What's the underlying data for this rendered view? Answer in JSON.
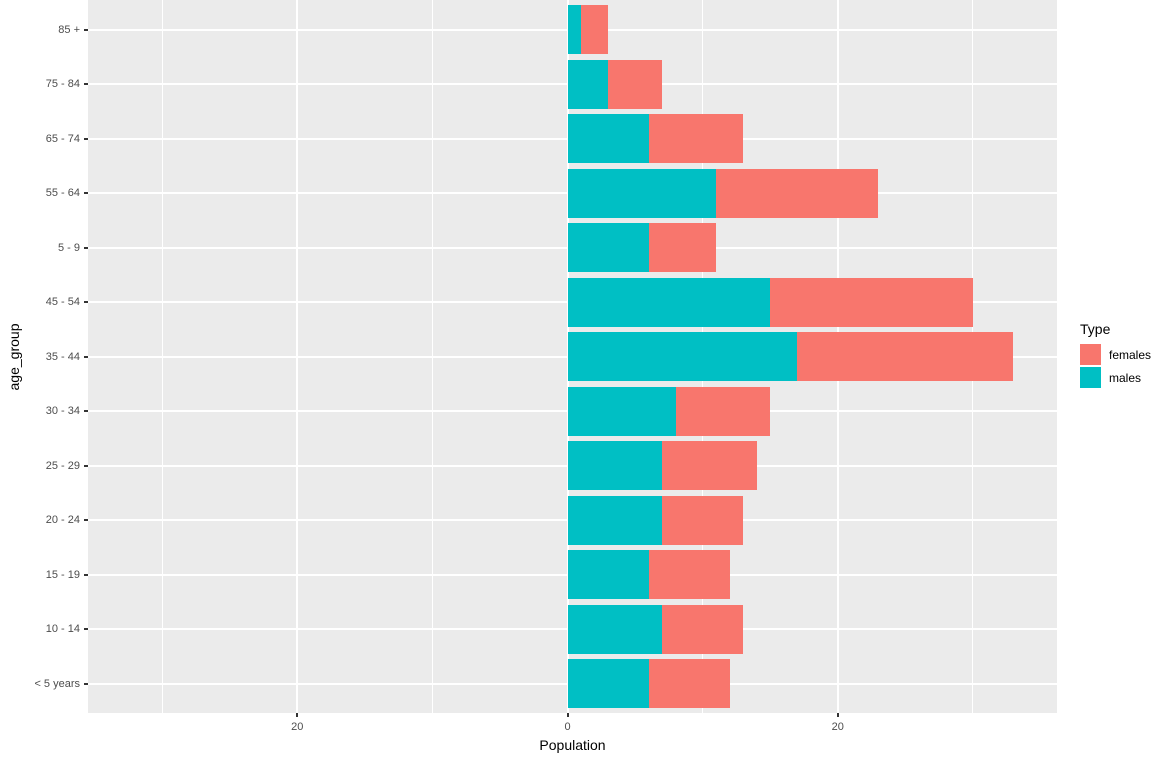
{
  "chart_data": {
    "type": "bar",
    "orientation": "horizontal",
    "stacked": true,
    "title": "",
    "xlabel": "Population",
    "ylabel": "age_group",
    "categories_top_to_bottom": [
      "85 +",
      "75 - 84",
      "65 - 74",
      "55 - 64",
      "5 - 9",
      "45 - 54",
      "35 - 44",
      "30 - 34",
      "25 - 29",
      "20 - 24",
      "15 - 19",
      "10 - 14",
      "< 5 years"
    ],
    "series": [
      {
        "name": "males",
        "color": "#00BFC4",
        "values": [
          1,
          3,
          6,
          11,
          6,
          15,
          17,
          8,
          7,
          7,
          6,
          7,
          6
        ]
      },
      {
        "name": "females",
        "color": "#F8766D",
        "values": [
          2,
          4,
          7,
          12,
          5,
          15,
          16,
          7,
          7,
          6,
          6,
          6,
          6
        ]
      }
    ],
    "x_axis": {
      "range": [
        -35.5,
        36.2
      ],
      "major_ticks": [
        -20,
        0,
        20
      ],
      "tick_labels": [
        "20",
        "0",
        "20"
      ],
      "minor_gridlines": [
        -30,
        -10,
        10,
        30
      ]
    },
    "legend": {
      "position": "right",
      "title": "Type",
      "entries": [
        {
          "label": "females",
          "color": "#F8766D"
        },
        {
          "label": "males",
          "color": "#00BFC4"
        }
      ]
    },
    "style": {
      "panel_bg": "#EBEBEB",
      "grid_color": "#FFFFFF",
      "tick_color": "#333333",
      "tick_label_color": "#4D4D4D",
      "grid_on": true
    }
  }
}
